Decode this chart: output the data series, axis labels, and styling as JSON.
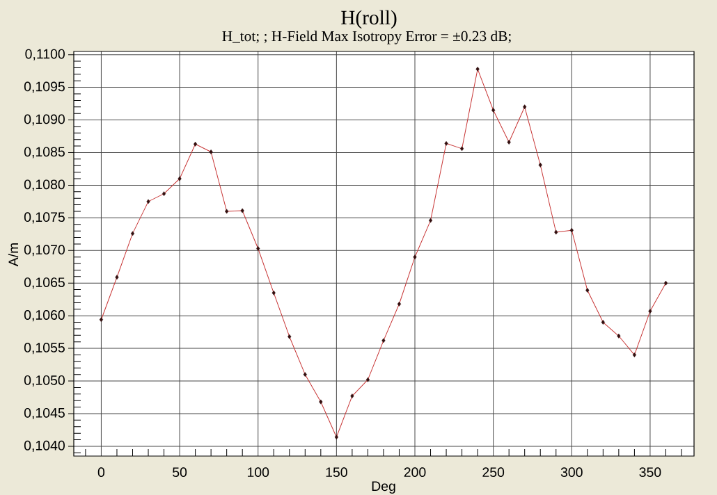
{
  "chart_data": {
    "type": "line",
    "title": "H(roll)",
    "subtitle": "H_tot; ;  H-Field Max Isotropy Error = ±0.23 dB;",
    "xlabel": "Deg",
    "ylabel": "A/m",
    "x": [
      0,
      10,
      20,
      30,
      40,
      50,
      60,
      70,
      80,
      90,
      100,
      110,
      120,
      130,
      140,
      150,
      160,
      170,
      180,
      190,
      200,
      210,
      220,
      230,
      240,
      250,
      260,
      270,
      280,
      290,
      300,
      310,
      320,
      330,
      340,
      350,
      360
    ],
    "series": [
      {
        "color": "#c83737",
        "values": [
          0.10594,
          0.10659,
          0.10726,
          0.10775,
          0.10787,
          0.1081,
          0.10863,
          0.10851,
          0.1076,
          0.10761,
          0.10703,
          0.10635,
          0.10568,
          0.1051,
          0.10468,
          0.10414,
          0.10477,
          0.10502,
          0.10562,
          0.10618,
          0.1069,
          0.10746,
          0.10864,
          0.10856,
          0.10978,
          0.10915,
          0.10866,
          0.1092,
          0.10831,
          0.10728,
          0.10731,
          0.10639,
          0.1059,
          0.10569,
          0.1054,
          0.10607,
          0.1065
        ]
      }
    ],
    "xlim": [
      -17.5,
      378
    ],
    "ylim": [
      0.10385,
      0.11005
    ],
    "xticks": [
      {
        "value": -10,
        "label": null
      },
      0,
      {
        "value": 10,
        "label": null
      },
      {
        "value": 20,
        "label": null
      },
      {
        "value": 30,
        "label": null
      },
      {
        "value": 40,
        "label": null
      },
      50,
      {
        "value": 60,
        "label": null
      },
      {
        "value": 70,
        "label": null
      },
      {
        "value": 80,
        "label": null
      },
      {
        "value": 90,
        "label": null
      },
      100,
      {
        "value": 110,
        "label": null
      },
      {
        "value": 120,
        "label": null
      },
      {
        "value": 130,
        "label": null
      },
      {
        "value": 140,
        "label": null
      },
      150,
      {
        "value": 160,
        "label": null
      },
      {
        "value": 170,
        "label": null
      },
      {
        "value": 180,
        "label": null
      },
      {
        "value": 190,
        "label": null
      },
      200,
      {
        "value": 210,
        "label": null
      },
      {
        "value": 220,
        "label": null
      },
      {
        "value": 230,
        "label": null
      },
      {
        "value": 240,
        "label": null
      },
      250,
      {
        "value": 260,
        "label": null
      },
      {
        "value": 270,
        "label": null
      },
      {
        "value": 280,
        "label": null
      },
      {
        "value": 290,
        "label": null
      },
      300,
      {
        "value": 310,
        "label": null
      },
      {
        "value": 320,
        "label": null
      },
      {
        "value": 330,
        "label": null
      },
      {
        "value": 340,
        "label": null
      },
      350,
      {
        "value": 360,
        "label": null
      },
      {
        "value": 370,
        "label": null
      }
    ],
    "yticks": [
      {
        "value": 0.1039,
        "label": null
      },
      {
        "value": 0.104,
        "label": "0,1040"
      },
      {
        "value": 0.1041,
        "label": null
      },
      {
        "value": 0.1042,
        "label": null
      },
      {
        "value": 0.1043,
        "label": null
      },
      {
        "value": 0.1044,
        "label": null
      },
      {
        "value": 0.1045,
        "label": "0,1045"
      },
      {
        "value": 0.1046,
        "label": null
      },
      {
        "value": 0.1047,
        "label": null
      },
      {
        "value": 0.1048,
        "label": null
      },
      {
        "value": 0.1049,
        "label": null
      },
      {
        "value": 0.105,
        "label": "0,1050"
      },
      {
        "value": 0.1051,
        "label": null
      },
      {
        "value": 0.1052,
        "label": null
      },
      {
        "value": 0.1053,
        "label": null
      },
      {
        "value": 0.1054,
        "label": null
      },
      {
        "value": 0.1055,
        "label": "0,1055"
      },
      {
        "value": 0.1056,
        "label": null
      },
      {
        "value": 0.1057,
        "label": null
      },
      {
        "value": 0.1058,
        "label": null
      },
      {
        "value": 0.1059,
        "label": null
      },
      {
        "value": 0.106,
        "label": "0,1060"
      },
      {
        "value": 0.1061,
        "label": null
      },
      {
        "value": 0.1062,
        "label": null
      },
      {
        "value": 0.1063,
        "label": null
      },
      {
        "value": 0.1064,
        "label": null
      },
      {
        "value": 0.1065,
        "label": "0,1065"
      },
      {
        "value": 0.1066,
        "label": null
      },
      {
        "value": 0.1067,
        "label": null
      },
      {
        "value": 0.1068,
        "label": null
      },
      {
        "value": 0.1069,
        "label": null
      },
      {
        "value": 0.107,
        "label": "0,1070"
      },
      {
        "value": 0.1071,
        "label": null
      },
      {
        "value": 0.1072,
        "label": null
      },
      {
        "value": 0.1073,
        "label": null
      },
      {
        "value": 0.1074,
        "label": null
      },
      {
        "value": 0.1075,
        "label": "0,1075"
      },
      {
        "value": 0.1076,
        "label": null
      },
      {
        "value": 0.1077,
        "label": null
      },
      {
        "value": 0.1078,
        "label": null
      },
      {
        "value": 0.1079,
        "label": null
      },
      {
        "value": 0.108,
        "label": "0,1080"
      },
      {
        "value": 0.1081,
        "label": null
      },
      {
        "value": 0.1082,
        "label": null
      },
      {
        "value": 0.1083,
        "label": null
      },
      {
        "value": 0.1084,
        "label": null
      },
      {
        "value": 0.1085,
        "label": "0,1085"
      },
      {
        "value": 0.1086,
        "label": null
      },
      {
        "value": 0.1087,
        "label": null
      },
      {
        "value": 0.1088,
        "label": null
      },
      {
        "value": 0.1089,
        "label": null
      },
      {
        "value": 0.109,
        "label": "0,1090"
      },
      {
        "value": 0.1091,
        "label": null
      },
      {
        "value": 0.1092,
        "label": null
      },
      {
        "value": 0.1093,
        "label": null
      },
      {
        "value": 0.1094,
        "label": null
      },
      {
        "value": 0.1095,
        "label": "0,1095"
      },
      {
        "value": 0.1096,
        "label": null
      },
      {
        "value": 0.1097,
        "label": null
      },
      {
        "value": 0.1098,
        "label": null
      },
      {
        "value": 0.1099,
        "label": null
      },
      {
        "value": 0.11,
        "label": "0,1100"
      }
    ],
    "grid": true,
    "marker": "diamond",
    "line_style": "solid"
  }
}
